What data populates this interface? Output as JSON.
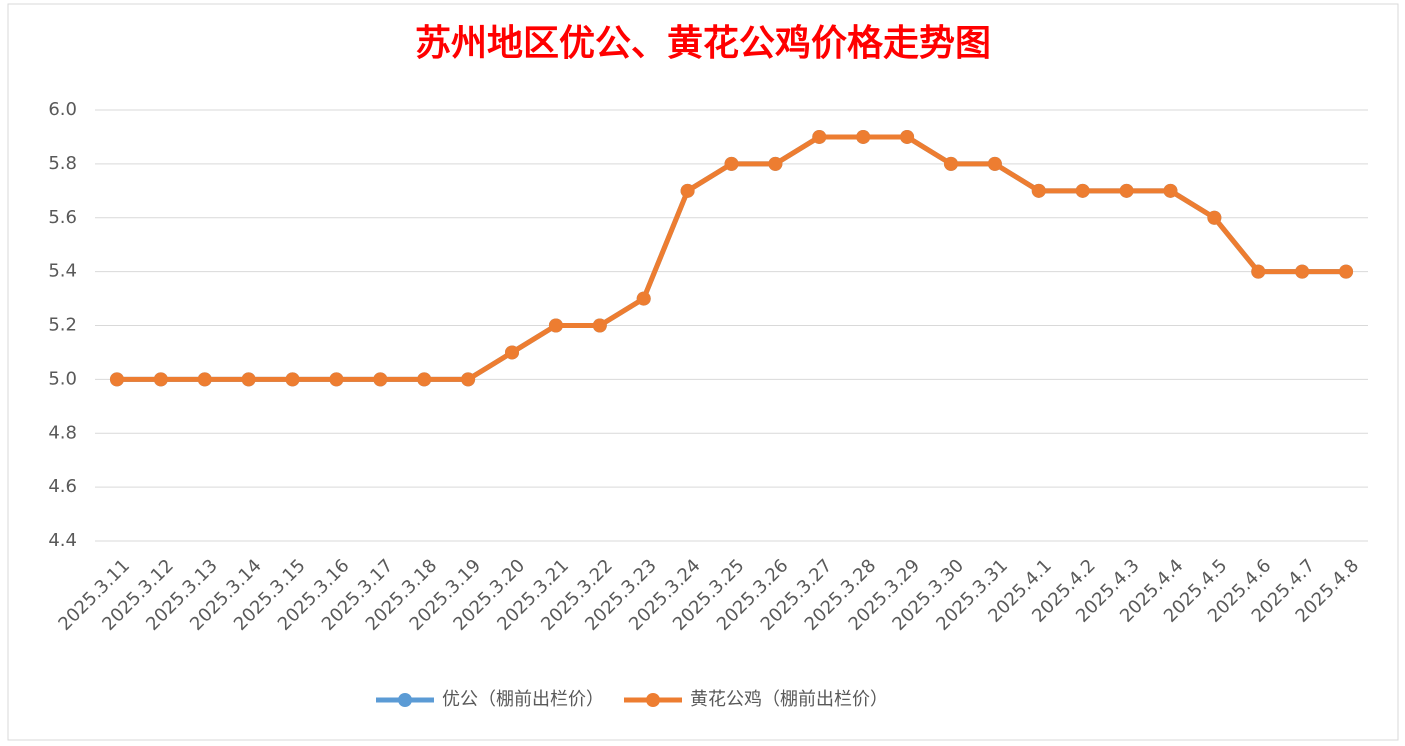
{
  "chart_data": {
    "type": "line",
    "title": "苏州地区优公、黄花公鸡价格走势图",
    "categories": [
      "2025.3.11",
      "2025.3.12",
      "2025.3.13",
      "2025.3.14",
      "2025.3.15",
      "2025.3.16",
      "2025.3.17",
      "2025.3.18",
      "2025.3.19",
      "2025.3.20",
      "2025.3.21",
      "2025.3.22",
      "2025.3.23",
      "2025.3.24",
      "2025.3.25",
      "2025.3.26",
      "2025.3.27",
      "2025.3.28",
      "2025.3.29",
      "2025.3.30",
      "2025.3.31",
      "2025.4.1",
      "2025.4.2",
      "2025.4.3",
      "2025.4.4",
      "2025.4.5",
      "2025.4.6",
      "2025.4.7",
      "2025.4.8"
    ],
    "series": [
      {
        "name": "优公（棚前出栏价）",
        "color": "#5b9bd5",
        "values": [
          5.0,
          5.0,
          5.0,
          5.0,
          5.0,
          5.0,
          5.0,
          5.0,
          5.0,
          5.1,
          5.2,
          5.2,
          5.3,
          5.7,
          5.8,
          5.8,
          5.9,
          5.9,
          5.9,
          5.8,
          5.8,
          5.7,
          5.7,
          5.7,
          5.7,
          5.6,
          5.4,
          5.4,
          5.4
        ]
      },
      {
        "name": "黄花公鸡（棚前出栏价）",
        "color": "#ed7d31",
        "values": [
          5.0,
          5.0,
          5.0,
          5.0,
          5.0,
          5.0,
          5.0,
          5.0,
          5.0,
          5.1,
          5.2,
          5.2,
          5.3,
          5.7,
          5.8,
          5.8,
          5.9,
          5.9,
          5.9,
          5.8,
          5.8,
          5.7,
          5.7,
          5.7,
          5.7,
          5.6,
          5.4,
          5.4,
          5.4
        ]
      }
    ],
    "ylim": [
      4.4,
      6.0
    ],
    "yticks": [
      4.4,
      4.6,
      4.8,
      {
        "value": 5,
        "label": "5.0"
      },
      5.2,
      5.4,
      5.6,
      5.8,
      {
        "value": 6,
        "label": "6.0"
      }
    ],
    "grid": true,
    "legend": "bottom"
  }
}
